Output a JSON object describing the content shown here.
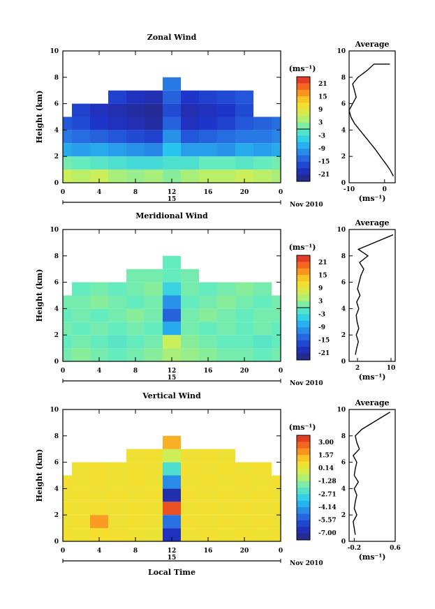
{
  "panels": [
    {
      "title": "Zonal Wind",
      "ylabel": "Height (km)",
      "yticks": [
        "0",
        "2",
        "4",
        "6",
        "8",
        "10"
      ],
      "xticks": [
        "0",
        "4",
        "8",
        "12",
        "16",
        "20",
        "0"
      ],
      "day": "15",
      "month": "Nov 2010",
      "unit": "(ms⁻¹)",
      "colorbar": [
        "21",
        "15",
        "9",
        "3",
        "-3",
        "-9",
        "-15",
        "-21"
      ],
      "avg_title": "Average",
      "avg_xticks": [
        "-10",
        "0"
      ],
      "avg_yticks": [
        "0",
        "2",
        "4",
        "6",
        "8",
        "10"
      ],
      "avg_unit": "(ms⁻¹)"
    },
    {
      "title": "Meridional Wind",
      "ylabel": "Height (km)",
      "yticks": [
        "0",
        "2",
        "4",
        "6",
        "8",
        "10"
      ],
      "xticks": [
        "0",
        "4",
        "8",
        "12",
        "16",
        "20",
        "0"
      ],
      "day": "15",
      "month": "Nov 2010",
      "unit": "(ms⁻¹)",
      "colorbar": [
        "21",
        "15",
        "9",
        "3",
        "-3",
        "-9",
        "-15",
        "-21"
      ],
      "avg_title": "Average",
      "avg_xticks": [
        "2",
        "10"
      ],
      "avg_yticks": [
        "0",
        "2",
        "4",
        "6",
        "8",
        "10"
      ],
      "avg_unit": "(ms⁻¹)"
    },
    {
      "title": "Vertical Wind",
      "ylabel": "Height (km)",
      "yticks": [
        "0",
        "2",
        "4",
        "6",
        "8",
        "10"
      ],
      "xticks": [
        "0",
        "4",
        "8",
        "12",
        "16",
        "20",
        "0"
      ],
      "day": "15",
      "month": "Nov 2010",
      "unit": "(ms⁻¹)",
      "colorbar": [
        "3.00",
        "1.57",
        "0.14",
        "-1.28",
        "-2.71",
        "-4.14",
        "-5.57",
        "-7.00"
      ],
      "avg_title": "Average",
      "avg_xticks": [
        "-0.2",
        "0.6"
      ],
      "avg_yticks": [
        "0",
        "2",
        "4",
        "6",
        "8",
        "10"
      ],
      "avg_unit": "(ms⁻¹)"
    }
  ],
  "xlabel": "Local Time",
  "chart_data": [
    {
      "type": "heatmap",
      "title": "Zonal Wind",
      "xlabel": "",
      "ylabel": "Height (km)",
      "xlim": [
        0,
        24
      ],
      "ylim": [
        0,
        10
      ],
      "clim": [
        -24,
        24
      ],
      "x": [
        0,
        2,
        4,
        6,
        8,
        10,
        12,
        14,
        16,
        18,
        20,
        22,
        24
      ],
      "y": [
        0.5,
        1.5,
        2.5,
        3.5,
        4.5,
        5.5,
        6.5,
        7.5
      ],
      "values": [
        [
          6,
          5,
          6,
          4,
          3,
          4,
          2,
          4,
          5,
          5,
          6,
          5,
          4
        ],
        [
          1,
          0,
          -1,
          -2,
          -3,
          -3,
          -2,
          -2,
          0,
          0,
          -1,
          0,
          1
        ],
        [
          -8,
          -9,
          -8,
          -9,
          -10,
          -11,
          -6,
          -9,
          -9,
          -10,
          -8,
          -9,
          -8
        ],
        [
          -12,
          -13,
          -14,
          -15,
          -16,
          -17,
          -10,
          -15,
          -14,
          -13,
          -12,
          -12,
          -11
        ],
        [
          -15,
          -16,
          -18,
          -19,
          -20,
          -21,
          -14,
          -19,
          -18,
          -17,
          -15,
          -14,
          -13
        ],
        [
          null,
          -17,
          -19,
          -20,
          -21,
          -22,
          -16,
          -20,
          -19,
          -18,
          -16,
          null,
          null
        ],
        [
          null,
          null,
          null,
          -17,
          -19,
          -20,
          -14,
          -18,
          -17,
          -16,
          -15,
          null,
          null
        ],
        [
          null,
          null,
          null,
          null,
          null,
          null,
          -12,
          null,
          null,
          null,
          null,
          null,
          null
        ]
      ]
    },
    {
      "type": "heatmap",
      "title": "Meridional Wind",
      "xlabel": "",
      "ylabel": "Height (km)",
      "xlim": [
        0,
        24
      ],
      "ylim": [
        0,
        10
      ],
      "clim": [
        -24,
        24
      ],
      "x": [
        0,
        2,
        4,
        6,
        8,
        10,
        12,
        14,
        16,
        18,
        20,
        22,
        24
      ],
      "y": [
        0.5,
        1.5,
        2.5,
        3.5,
        4.5,
        5.5,
        6.5,
        7.5
      ],
      "values": [
        [
          1,
          2,
          1,
          0,
          1,
          2,
          4,
          3,
          2,
          1,
          1,
          0,
          1
        ],
        [
          0,
          1,
          0,
          -1,
          0,
          1,
          6,
          2,
          1,
          0,
          0,
          -1,
          0
        ],
        [
          1,
          0,
          1,
          0,
          1,
          0,
          -8,
          1,
          0,
          1,
          0,
          1,
          0
        ],
        [
          0,
          1,
          0,
          1,
          2,
          1,
          -14,
          1,
          2,
          1,
          0,
          1,
          1
        ],
        [
          1,
          1,
          2,
          1,
          0,
          1,
          -10,
          0,
          1,
          2,
          1,
          0,
          1
        ],
        [
          null,
          0,
          1,
          0,
          1,
          2,
          -4,
          1,
          0,
          1,
          2,
          1,
          null
        ],
        [
          null,
          null,
          null,
          null,
          1,
          1,
          0,
          1,
          null,
          null,
          null,
          null,
          null
        ],
        [
          null,
          null,
          null,
          null,
          null,
          null,
          0,
          null,
          null,
          null,
          null,
          null,
          null
        ]
      ]
    },
    {
      "type": "heatmap",
      "title": "Vertical Wind",
      "xlabel": "Local Time",
      "ylabel": "Height (km)",
      "xlim": [
        0,
        24
      ],
      "ylim": [
        0,
        10
      ],
      "clim": [
        -7.7,
        3.7
      ],
      "x": [
        0,
        2,
        4,
        6,
        8,
        10,
        12,
        14,
        16,
        18,
        20,
        22,
        24
      ],
      "y": [
        0.5,
        1.5,
        2.5,
        3.5,
        4.5,
        5.5,
        6.5,
        7.5
      ],
      "values": [
        [
          0.6,
          0.5,
          0.7,
          0.6,
          0.5,
          0.4,
          -6.5,
          0.5,
          0.6,
          0.5,
          0.6,
          0.5,
          0.6
        ],
        [
          0.5,
          0.6,
          1.8,
          0.5,
          0.6,
          0.5,
          -5.0,
          0.6,
          0.5,
          0.6,
          0.5,
          0.6,
          0.5
        ],
        [
          0.6,
          0.5,
          0.6,
          0.5,
          0.6,
          0.5,
          3.0,
          0.5,
          0.6,
          0.5,
          0.6,
          0.5,
          0.6
        ],
        [
          0.5,
          0.6,
          0.5,
          0.6,
          0.5,
          0.6,
          -6.8,
          0.6,
          0.5,
          0.6,
          0.5,
          0.6,
          0.5
        ],
        [
          0.6,
          0.5,
          0.6,
          0.5,
          0.6,
          0.5,
          -4.5,
          0.5,
          0.6,
          0.5,
          0.6,
          0.5,
          0.6
        ],
        [
          null,
          0.5,
          0.6,
          0.5,
          0.6,
          0.5,
          -2.5,
          0.6,
          0.5,
          0.6,
          0.5,
          0.6,
          null
        ],
        [
          null,
          null,
          null,
          null,
          0.5,
          0.6,
          -0.5,
          0.5,
          0.6,
          0.5,
          null,
          null,
          null
        ],
        [
          null,
          null,
          null,
          null,
          null,
          null,
          1.5,
          null,
          null,
          null,
          null,
          null,
          null
        ]
      ]
    }
  ],
  "average_profiles": [
    {
      "xlim": [
        -10,
        3
      ],
      "ylim": [
        0,
        10
      ],
      "x": [
        2.5,
        1.5,
        0.2,
        -1.2,
        -2.5,
        -4,
        -5.5,
        -7,
        -8.5,
        -9.5,
        -10,
        -9,
        -8,
        -8.5,
        -9,
        -7.5,
        -5,
        -3,
        1.5
      ],
      "y": [
        0.5,
        1,
        1.5,
        2,
        2.5,
        3,
        3.5,
        4,
        4.5,
        5,
        5.5,
        6,
        6.5,
        7,
        7.5,
        8,
        8.5,
        9,
        9
      ]
    },
    {
      "xlim": [
        0,
        11
      ],
      "ylim": [
        0,
        10
      ],
      "x": [
        1.5,
        1.8,
        2.2,
        1.7,
        2.3,
        1.9,
        1.7,
        2.3,
        1.8,
        2.6,
        2.0,
        2.4,
        2.8,
        3.5,
        2.5,
        4.5,
        2.2,
        10.5
      ],
      "y": [
        0.5,
        1,
        1.5,
        2,
        2.5,
        3,
        3.5,
        4,
        4.5,
        5,
        5.5,
        6,
        6.5,
        7,
        7.5,
        8,
        8.5,
        9.6
      ]
    },
    {
      "xlim": [
        -0.3,
        0.6
      ],
      "ylim": [
        0,
        10
      ],
      "x": [
        -0.18,
        -0.2,
        -0.22,
        -0.15,
        -0.2,
        -0.18,
        -0.15,
        -0.2,
        -0.12,
        -0.2,
        -0.18,
        -0.15,
        -0.22,
        -0.1,
        -0.15,
        -0.18,
        -0.05,
        0.5
      ],
      "y": [
        0.5,
        1,
        1.5,
        2,
        2.5,
        3,
        3.5,
        4,
        4.5,
        5,
        5.5,
        6,
        6.5,
        7,
        7.5,
        8,
        8.5,
        9.8
      ]
    }
  ]
}
